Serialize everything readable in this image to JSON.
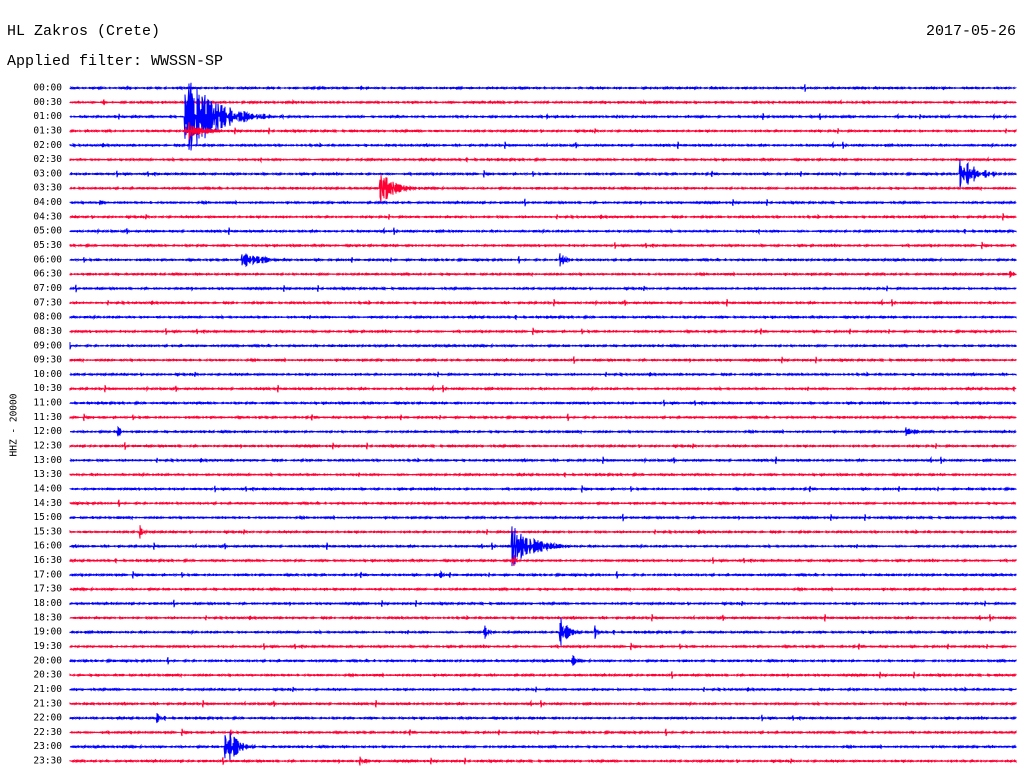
{
  "header": {
    "station": "HL Zakros (Crete)",
    "date": "2017-05-26",
    "filter": "Applied filter: WWSSN-SP"
  },
  "axis_label": "HHZ - 20000",
  "rows": [
    "00:00",
    "00:30",
    "01:00",
    "01:30",
    "02:00",
    "02:30",
    "03:00",
    "03:30",
    "04:00",
    "04:30",
    "05:00",
    "05:30",
    "06:00",
    "06:30",
    "07:00",
    "07:30",
    "08:00",
    "08:30",
    "09:00",
    "09:30",
    "10:00",
    "10:30",
    "11:00",
    "11:30",
    "12:00",
    "12:30",
    "13:00",
    "13:30",
    "14:00",
    "14:30",
    "15:00",
    "15:30",
    "16:00",
    "16:30",
    "17:00",
    "17:30",
    "18:00",
    "18:30",
    "19:00",
    "19:30",
    "20:00",
    "20:30",
    "21:00",
    "21:30",
    "22:00",
    "22:30",
    "23:00",
    "23:30"
  ]
}
